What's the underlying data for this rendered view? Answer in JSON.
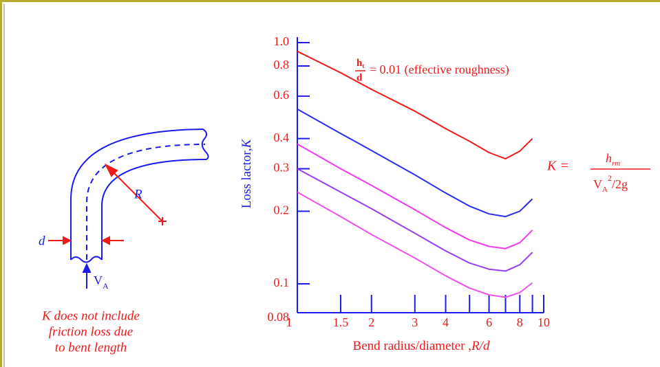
{
  "chart_data": {
    "type": "line",
    "x_label": "Bend radius/diameter ,",
    "x_label_var": "R/d",
    "y_label": "Loss lactor,",
    "y_label_var": "K",
    "xlog": true,
    "ylog": true,
    "xlim": [
      1,
      10
    ],
    "ylim": [
      0.08,
      1
    ],
    "xticks": [
      1,
      1.5,
      2,
      3,
      4,
      6,
      8,
      10
    ],
    "xminor_ticks": [
      5,
      7,
      9
    ],
    "yticks": [
      0.08,
      0.1,
      0.2,
      0.3,
      0.4,
      0.6,
      0.8,
      {
        "value": 1,
        "label": "1.0"
      }
    ],
    "x": [
      1,
      1.5,
      2,
      3,
      4,
      5,
      6,
      7,
      8,
      9
    ],
    "series": [
      {
        "color": "#f01818",
        "values": [
          0.92,
          0.75,
          0.64,
          0.52,
          0.44,
          0.39,
          0.35,
          0.33,
          0.355,
          0.4
        ]
      },
      {
        "color": "#2a2af0",
        "values": [
          0.53,
          0.42,
          0.357,
          0.283,
          0.238,
          0.21,
          0.195,
          0.19,
          0.2,
          0.225
        ]
      },
      {
        "color": "#f038f0",
        "values": [
          0.38,
          0.3,
          0.256,
          0.203,
          0.171,
          0.152,
          0.143,
          0.14,
          0.148,
          0.167
        ]
      },
      {
        "color": "#9a3cf0",
        "values": [
          0.3,
          0.24,
          0.205,
          0.162,
          0.137,
          0.122,
          0.115,
          0.113,
          0.12,
          0.135
        ]
      },
      {
        "color": "#f050f0",
        "values": [
          0.24,
          0.19,
          0.16,
          0.128,
          0.108,
          0.096,
          0.09,
          0.088,
          0.092,
          0.101
        ]
      }
    ],
    "annotation": {
      "numerator": "h",
      "numerator_sub": "t",
      "denominator": "d",
      "text": "= 0.01 (effective roughness)"
    }
  },
  "diagram": {
    "d_label": "d",
    "r_label": "R",
    "v_label": "V",
    "v_sub": "A",
    "note": [
      "K does not include",
      "friction loss due",
      "to bent length"
    ],
    "formula": {
      "lhs": "K =",
      "numerator": "h",
      "numerator_sub": "rm",
      "denominator": "V",
      "denominator_sub": "A",
      "denominator_sup": "2",
      "denominator_rest": "/2g"
    }
  }
}
